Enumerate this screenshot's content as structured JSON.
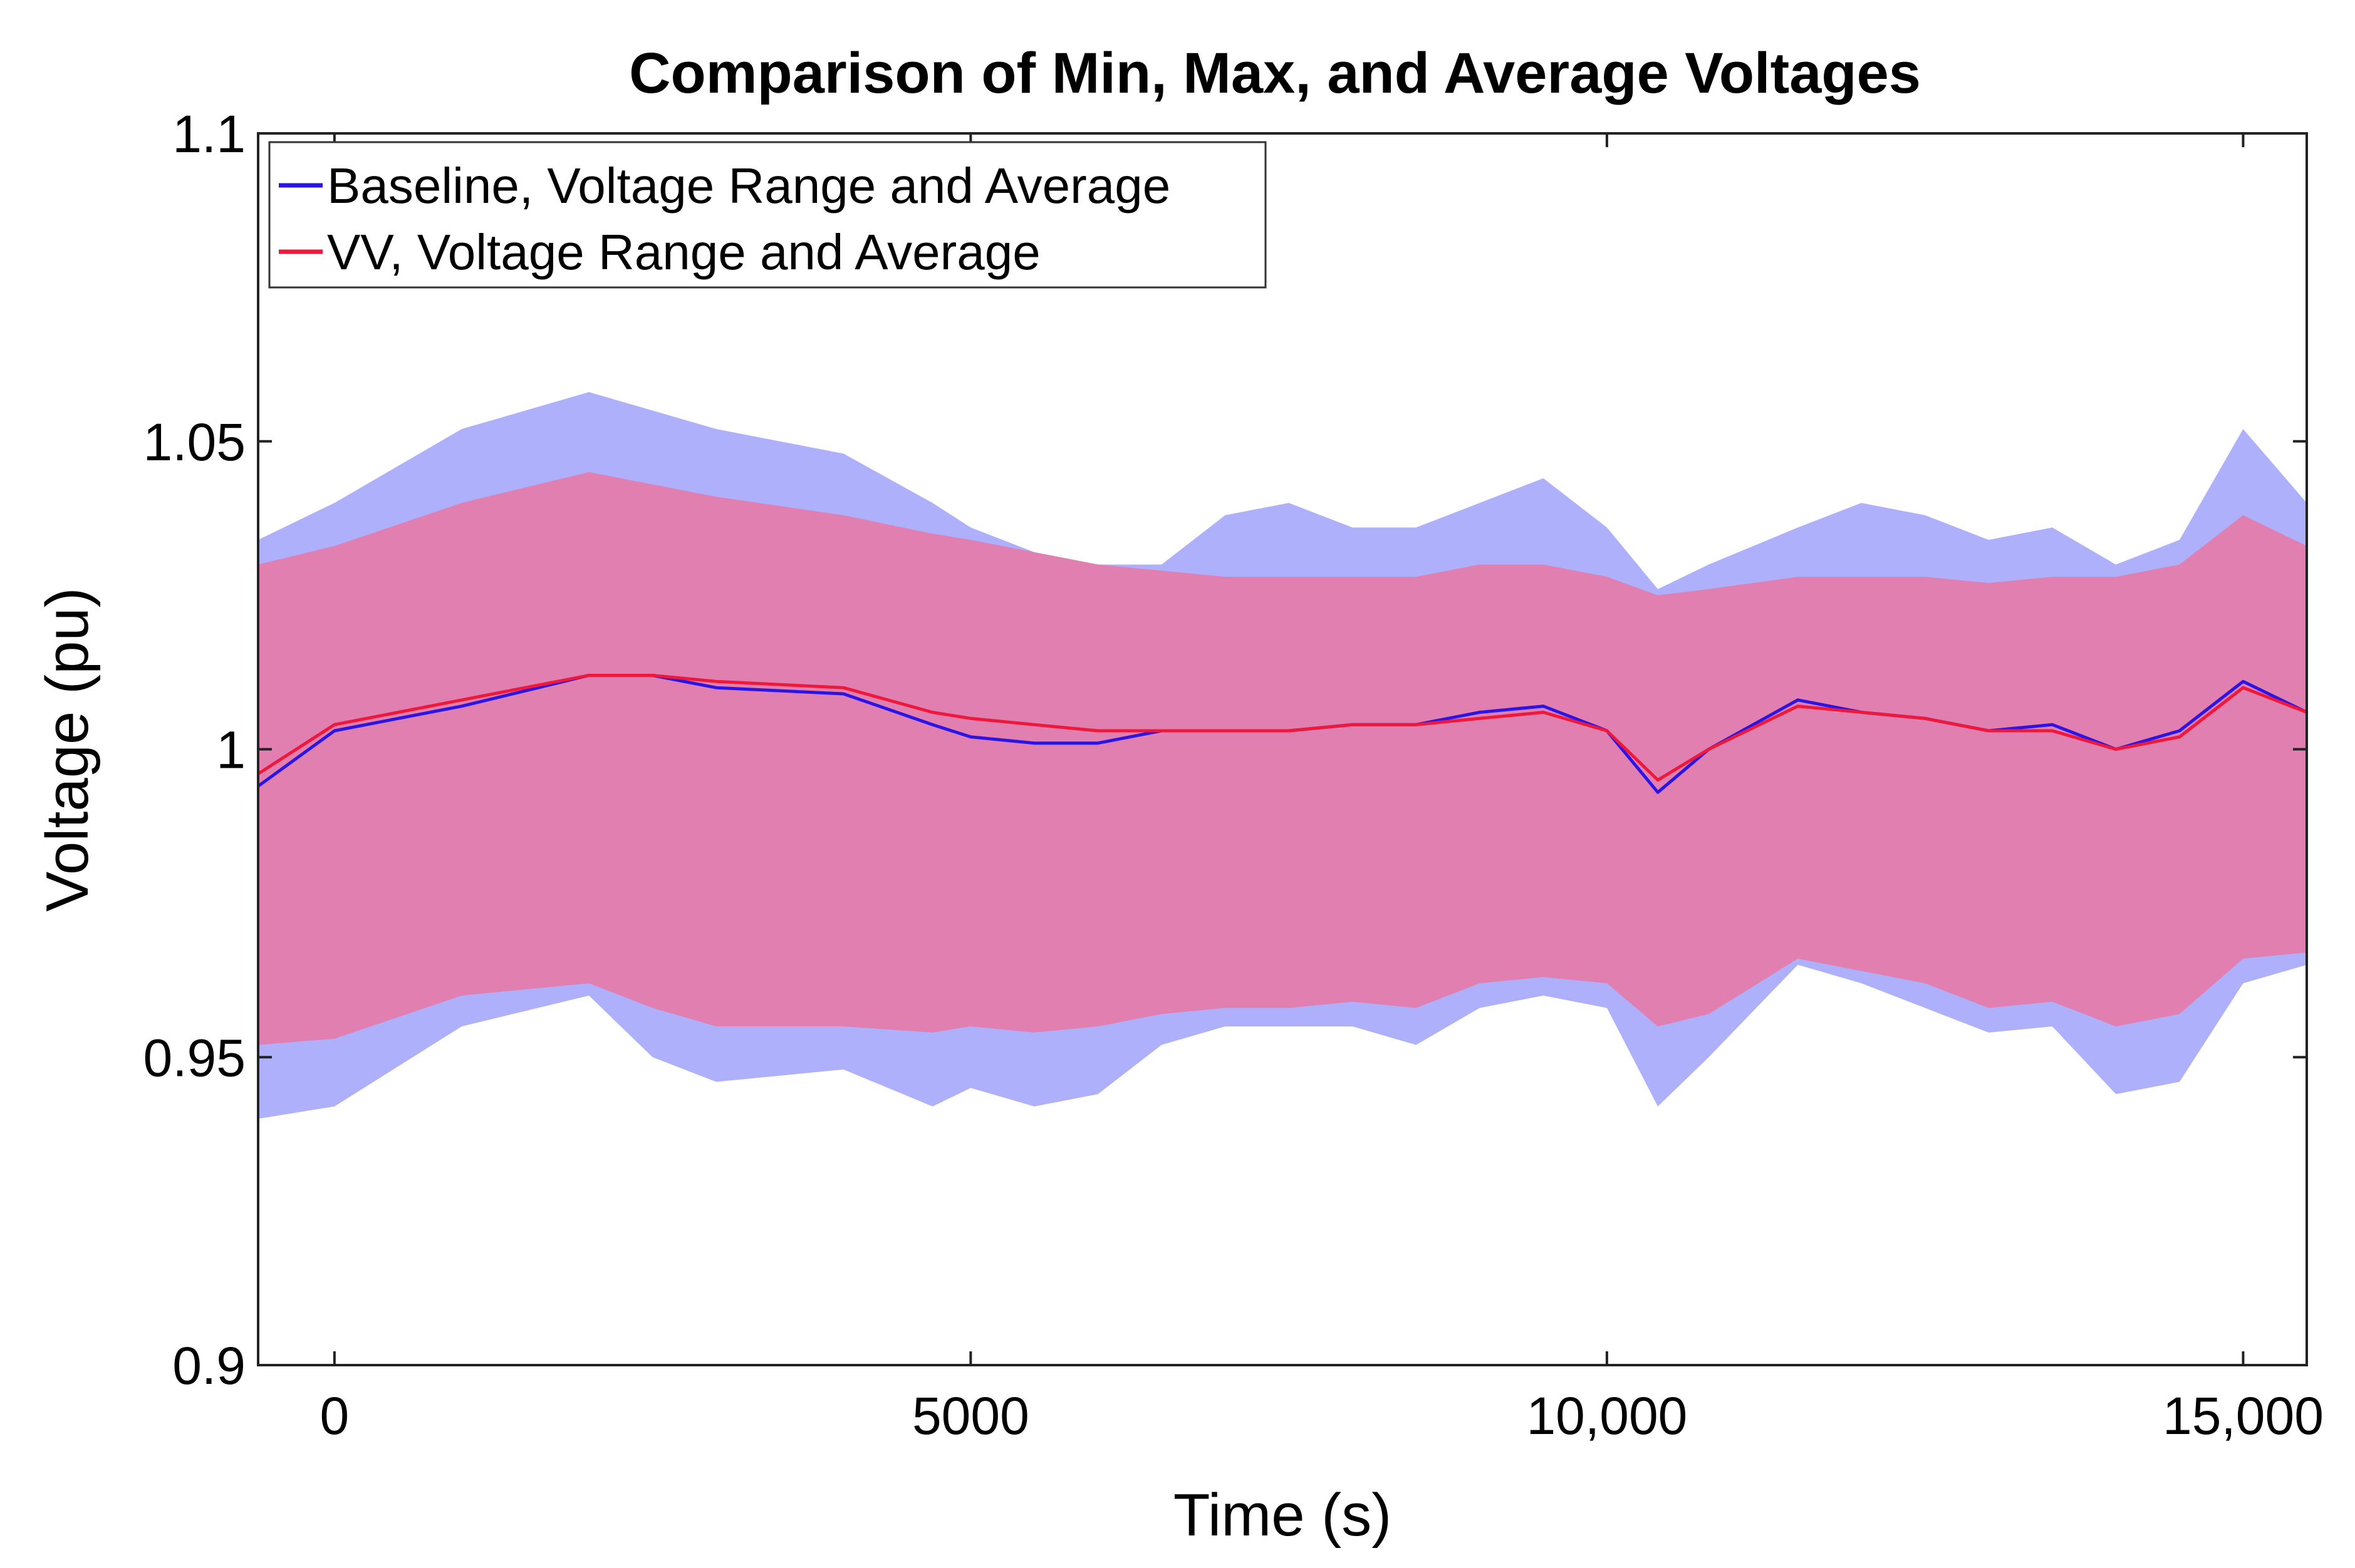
{
  "chart_data": {
    "type": "area",
    "title": "Comparison of Min, Max, and Average Voltages",
    "xlabel": "Time (s)",
    "ylabel": "Voltage (pu)",
    "xlim": [
      -600,
      15500
    ],
    "ylim": [
      0.9,
      1.1
    ],
    "x_ticks": [
      0,
      5000,
      10000,
      15000
    ],
    "x_tick_labels": [
      "0",
      "5000",
      "10,000",
      "15,000"
    ],
    "y_ticks": [
      0.9,
      0.95,
      1.0,
      1.05,
      1.1
    ],
    "y_tick_labels": [
      "0.9",
      "0.95",
      "1",
      "1.05",
      "1.1"
    ],
    "grid": false,
    "legend_position": "top-left",
    "colors": {
      "baseline_line": "#2b14e8",
      "baseline_fill": "#aeb0fb",
      "vv_line": "#f0183a",
      "vv_fill": "#e07fb0"
    },
    "x": [
      -600,
      0,
      1000,
      2000,
      2500,
      3000,
      4000,
      4700,
      5000,
      5500,
      6000,
      6500,
      7000,
      7500,
      8000,
      8500,
      9000,
      9500,
      10000,
      10400,
      10800,
      11500,
      12000,
      12500,
      13000,
      13500,
      14000,
      14500,
      15000,
      15500
    ],
    "series": [
      {
        "name": "Baseline, Voltage Range and Average",
        "color": "#2b14e8",
        "min": [
          0.94,
          0.942,
          0.955,
          0.96,
          0.95,
          0.946,
          0.948,
          0.942,
          0.945,
          0.942,
          0.944,
          0.952,
          0.955,
          0.955,
          0.955,
          0.952,
          0.958,
          0.96,
          0.958,
          0.942,
          0.95,
          0.965,
          0.962,
          0.958,
          0.954,
          0.955,
          0.944,
          0.946,
          0.962,
          0.965
        ],
        "avg": [
          0.994,
          1.003,
          1.007,
          1.012,
          1.012,
          1.01,
          1.009,
          1.004,
          1.002,
          1.001,
          1.001,
          1.003,
          1.003,
          1.003,
          1.004,
          1.004,
          1.006,
          1.007,
          1.003,
          0.993,
          1.0,
          1.008,
          1.006,
          1.005,
          1.003,
          1.004,
          1.0,
          1.003,
          1.011,
          1.006
        ],
        "max": [
          1.034,
          1.04,
          1.052,
          1.058,
          1.055,
          1.052,
          1.048,
          1.04,
          1.036,
          1.032,
          1.03,
          1.03,
          1.038,
          1.04,
          1.036,
          1.036,
          1.04,
          1.044,
          1.036,
          1.026,
          1.03,
          1.036,
          1.04,
          1.038,
          1.034,
          1.036,
          1.03,
          1.034,
          1.052,
          1.04
        ]
      },
      {
        "name": "VV, Voltage Range and Average",
        "color": "#f0183a",
        "min": [
          0.952,
          0.953,
          0.96,
          0.962,
          0.958,
          0.955,
          0.955,
          0.954,
          0.955,
          0.954,
          0.955,
          0.957,
          0.958,
          0.958,
          0.959,
          0.958,
          0.962,
          0.963,
          0.962,
          0.955,
          0.957,
          0.966,
          0.964,
          0.962,
          0.958,
          0.959,
          0.955,
          0.957,
          0.966,
          0.967
        ],
        "avg": [
          0.996,
          1.004,
          1.008,
          1.012,
          1.012,
          1.011,
          1.01,
          1.006,
          1.005,
          1.004,
          1.003,
          1.003,
          1.003,
          1.003,
          1.004,
          1.004,
          1.005,
          1.006,
          1.003,
          0.995,
          1.0,
          1.007,
          1.006,
          1.005,
          1.003,
          1.003,
          1.0,
          1.002,
          1.01,
          1.006
        ],
        "max": [
          1.03,
          1.033,
          1.04,
          1.045,
          1.043,
          1.041,
          1.038,
          1.035,
          1.034,
          1.032,
          1.03,
          1.029,
          1.028,
          1.028,
          1.028,
          1.028,
          1.03,
          1.03,
          1.028,
          1.025,
          1.026,
          1.028,
          1.028,
          1.028,
          1.027,
          1.028,
          1.028,
          1.03,
          1.038,
          1.033
        ]
      }
    ]
  }
}
